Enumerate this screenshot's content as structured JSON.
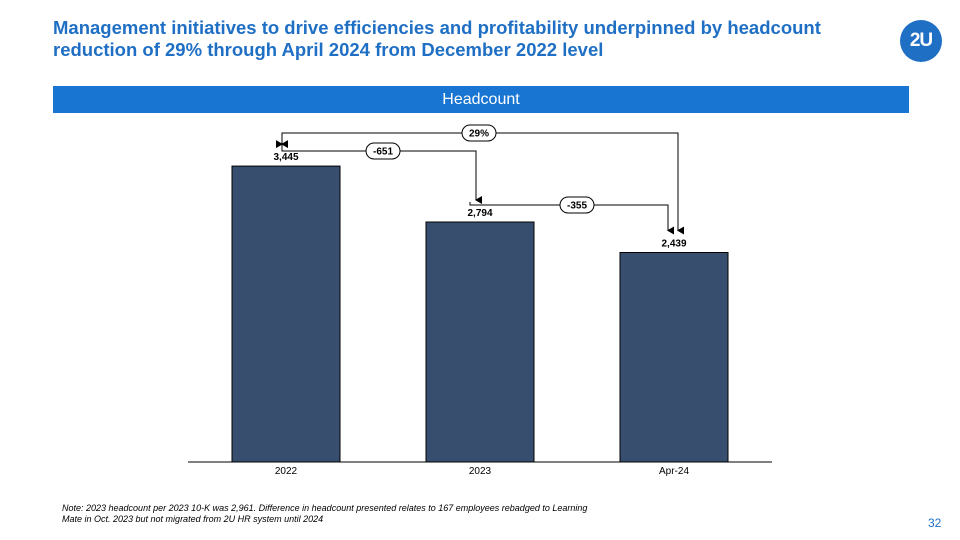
{
  "header": {
    "title": "Management initiatives to drive efficiencies and profitability underpinned by headcount reduction of 29% through April 2024 from December 2022 level",
    "logo_text": "2U"
  },
  "banner": {
    "label": "Headcount"
  },
  "chart_data": {
    "type": "bar",
    "title": "Headcount",
    "categories": [
      "2022",
      "2023",
      "Apr-24"
    ],
    "values": [
      3445,
      2794,
      2439
    ],
    "value_labels": [
      "3,445",
      "2,794",
      "2,439"
    ],
    "bar_color": "#374e6f",
    "ylim": [
      0,
      3900
    ],
    "xlabel": "",
    "ylabel": "",
    "grid": false,
    "annotations": [
      {
        "label": "-651",
        "from": "2022",
        "to": "2023"
      },
      {
        "label": "-355",
        "from": "2023",
        "to": "Apr-24"
      },
      {
        "label": "29%",
        "from": "2022",
        "to": "Apr-24"
      }
    ]
  },
  "footer": {
    "note": "Note: 2023 headcount per 2023 10-K was 2,961. Difference in headcount presented relates to 167 employees rebadged to Learning Mate in Oct. 2023 but not migrated from 2U HR system until 2024",
    "page_number": "32"
  },
  "colors": {
    "accent": "#1f6fc5",
    "banner": "#1875d1",
    "bar": "#374e6f"
  }
}
